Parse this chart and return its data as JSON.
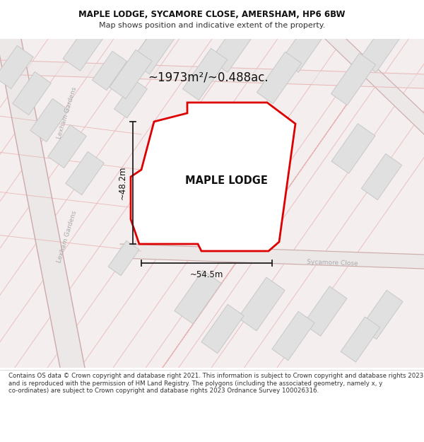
{
  "title_line1": "MAPLE LODGE, SYCAMORE CLOSE, AMERSHAM, HP6 6BW",
  "title_line2": "Map shows position and indicative extent of the property.",
  "property_label": "MAPLE LODGE",
  "area_label": "~1973m²/~0.488ac.",
  "dim_vertical": "~48.2m",
  "dim_horizontal": "~54.5m",
  "road_label": "Sycamore Close",
  "street_label1": "Lexham Gardens",
  "footer_text": "Contains OS data © Crown copyright and database right 2021. This information is subject to Crown copyright and database rights 2023 and is reproduced with the permission of HM Land Registry. The polygons (including the associated geometry, namely x, y co-ordinates) are subject to Crown copyright and database rights 2023 Ordnance Survey 100026316.",
  "map_bg": "#f7f2f2",
  "property_fill": "#ffffff",
  "property_edge": "#dd0000",
  "faint_road_color": "#e8b8b8",
  "main_road_color": "#ccaaaa",
  "road_center_color": "#e8e0e0",
  "building_fill": "#e0e0e0",
  "building_edge": "#c8c8c8",
  "header_bg": "#ffffff",
  "footer_bg": "#ffffff",
  "dim_line_color": "#222222",
  "text_color": "#333333",
  "street_text_color": "#aaaaaa"
}
